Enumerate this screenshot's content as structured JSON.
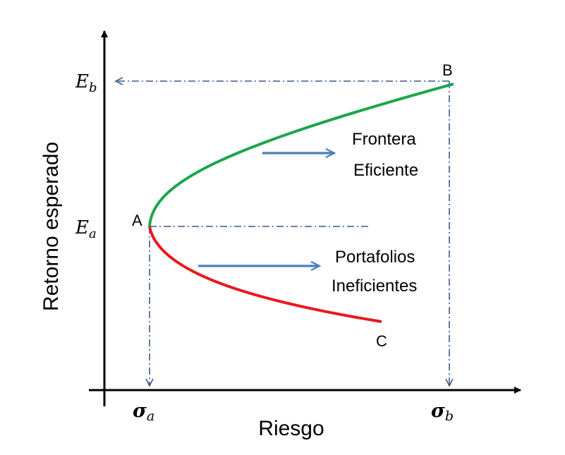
{
  "axes": {
    "x_label": "Riesgo",
    "y_label": "Retorno esperado",
    "x_tick_a": {
      "base": "σ",
      "sub": "a"
    },
    "x_tick_b": {
      "base": "σ",
      "sub": "b"
    },
    "y_tick_a": {
      "base": "E",
      "sub": "a"
    },
    "y_tick_b": {
      "base": "E",
      "sub": "b"
    }
  },
  "points": {
    "a": "A",
    "b": "B",
    "c": "C"
  },
  "annotations": {
    "efficient_line1": "Frontera",
    "efficient_line2": "Eficiente",
    "inefficient_line1": "Portafolios",
    "inefficient_line2": "Ineficientes"
  },
  "colors": {
    "axis": "#000000",
    "efficient_curve": "#1aa64a",
    "inefficient_curve": "#e8191f",
    "guide_lines": "#3a5a8c",
    "arrows": "#4a7ebb"
  }
}
